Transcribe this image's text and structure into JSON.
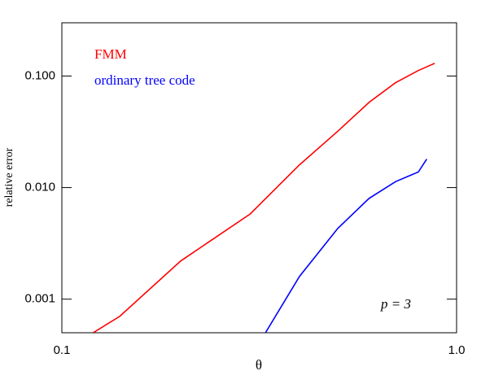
{
  "chart_data": {
    "type": "line",
    "xlabel": "θ",
    "ylabel": "relative error",
    "xscale": "log",
    "yscale": "log",
    "xlim": [
      0.1,
      1
    ],
    "xticks": [
      0.1,
      {
        "value": 1,
        "label": "1.0"
      }
    ],
    "ylim": [
      0.0005,
      0.3
    ],
    "yticks": [
      0.001,
      {
        "value": 0.01,
        "label": "0.010"
      },
      {
        "value": 0.1,
        "label": "0.100"
      }
    ],
    "legend": "upper left",
    "annotation": "p = 3",
    "series": [
      {
        "name": "FMM",
        "color": "#ff0000",
        "x": [
          0.12,
          0.14,
          0.2,
          0.3,
          0.4,
          0.5,
          0.6,
          0.7,
          0.8,
          0.88
        ],
        "values": [
          0.0005,
          0.0007,
          0.0022,
          0.0058,
          0.016,
          0.032,
          0.058,
          0.087,
          0.112,
          0.13
        ]
      },
      {
        "name": "ordinary tree code",
        "color": "#0000ff",
        "x": [
          0.328,
          0.4,
          0.5,
          0.6,
          0.7,
          0.8,
          0.84
        ],
        "values": [
          0.0005,
          0.0016,
          0.0043,
          0.008,
          0.0113,
          0.0138,
          0.018
        ]
      }
    ]
  }
}
